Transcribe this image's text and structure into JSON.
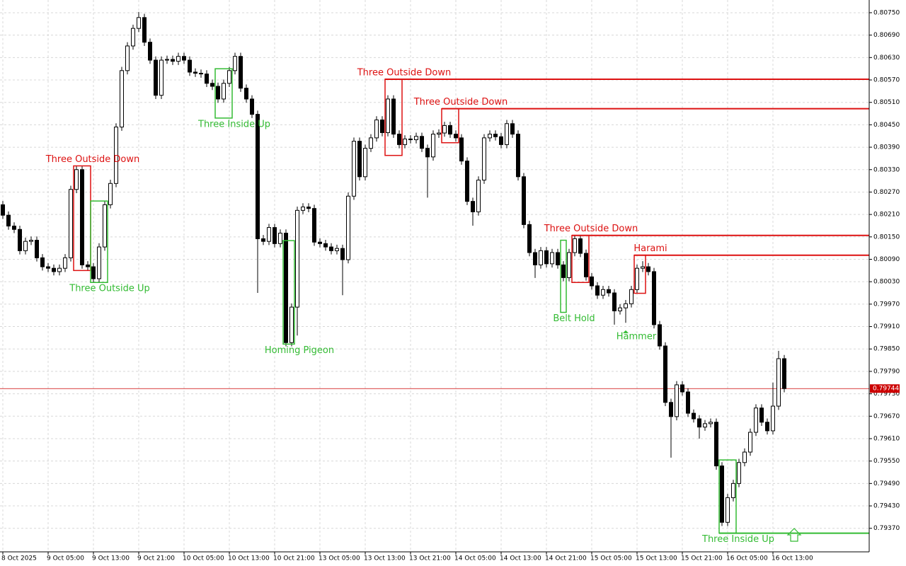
{
  "chart_data": {
    "type": "candlestick",
    "categories": [
      "8 Oct 2025",
      null,
      null,
      null,
      null,
      null,
      null,
      null,
      "9 Oct 05:00",
      null,
      null,
      null,
      null,
      null,
      null,
      null,
      "9 Oct 13:00",
      null,
      null,
      null,
      null,
      null,
      null,
      null,
      "9 Oct 21:00",
      null,
      null,
      null,
      null,
      null,
      null,
      null,
      "10 Oct 05:00",
      null,
      null,
      null,
      null,
      null,
      null,
      null,
      "10 Oct 13:00",
      null,
      null,
      null,
      null,
      null,
      null,
      null,
      "10 Oct 21:00",
      null,
      null,
      null,
      null,
      null,
      null,
      null,
      "13 Oct 05:00",
      null,
      null,
      null,
      null,
      null,
      null,
      null,
      "13 Oct 13:00",
      null,
      null,
      null,
      null,
      null,
      null,
      null,
      "13 Oct 21:00",
      null,
      null,
      null,
      null,
      null,
      null,
      null,
      "14 Oct 05:00",
      null,
      null,
      null,
      null,
      null,
      null,
      null,
      "14 Oct 13:00",
      null,
      null,
      null,
      null,
      null,
      null,
      null,
      "14 Oct 21:00",
      null,
      null,
      null,
      null,
      null,
      null,
      null,
      "15 Oct 05:00",
      null,
      null,
      null,
      null,
      null,
      null,
      null,
      "15 Oct 13:00",
      null,
      null,
      null,
      null,
      null,
      null,
      null,
      "15 Oct 21:00",
      null,
      null,
      null,
      null,
      null,
      null,
      null,
      "16 Oct 05:00",
      null,
      null,
      null,
      null,
      null,
      null,
      null,
      "16 Oct 13:00",
      null,
      null
    ],
    "open": [
      0.80236,
      0.80208,
      0.80179,
      0.8017,
      0.80113,
      0.80138,
      0.80141,
      0.80094,
      0.8007,
      0.80066,
      0.80057,
      0.80066,
      0.80094,
      0.80277,
      0.8033,
      0.80075,
      0.8007,
      0.80038,
      0.80123,
      0.80236,
      0.80293,
      0.80444,
      0.80595,
      0.80661,
      0.80708,
      0.80737,
      0.80671,
      0.80623,
      0.80529,
      0.80623,
      0.80625,
      0.8062,
      0.80633,
      0.80623,
      0.80591,
      0.80588,
      0.80586,
      0.80561,
      0.80553,
      0.80519,
      0.80561,
      0.80595,
      0.80633,
      0.80548,
      0.80519,
      0.80478,
      0.80145,
      0.80138,
      0.80175,
      0.80132,
      0.8016,
      0.79867,
      0.79962,
      0.80221,
      0.8023,
      0.80226,
      0.80136,
      0.80132,
      0.80123,
      0.80113,
      0.80119,
      0.80089,
      0.80259,
      0.80406,
      0.80311,
      0.80387,
      0.80415,
      0.80463,
      0.80429,
      0.80519,
      0.80425,
      0.80397,
      0.80412,
      0.8041,
      0.80419,
      0.80387,
      0.80364,
      0.80425,
      0.80428,
      0.80448,
      0.80425,
      0.80415,
      0.80353,
      0.80245,
      0.80217,
      0.80302,
      0.80415,
      0.80425,
      0.80418,
      0.80397,
      0.80453,
      0.80425,
      0.80311,
      0.80183,
      0.80108,
      0.80075,
      0.80113,
      0.80078,
      0.80108,
      0.80075,
      0.80041,
      0.80108,
      0.80145,
      0.80106,
      0.80043,
      0.80019,
      0.79994,
      0.80009,
      0.8,
      0.79952,
      0.7996,
      0.79971,
      0.80009,
      0.80066,
      0.8007,
      0.80057,
      0.79915,
      0.79858,
      0.79707,
      0.79669,
      0.79754,
      0.79735,
      0.79678,
      0.79663,
      0.79641,
      0.7965,
      0.79654,
      0.79537,
      0.79386,
      0.79452,
      0.7949,
      0.79546,
      0.79574,
      0.79627,
      0.79692,
      0.79654,
      0.79631,
      0.79697,
      0.79824
    ],
    "high": [
      0.80246,
      0.80218,
      0.80189,
      0.8018,
      0.80148,
      0.80151,
      0.80151,
      0.80104,
      0.8008,
      0.80076,
      0.80076,
      0.80104,
      0.80287,
      0.8034,
      0.8034,
      0.80085,
      0.8008,
      0.80133,
      0.80246,
      0.80303,
      0.80454,
      0.80605,
      0.80671,
      0.80718,
      0.80752,
      0.80747,
      0.80681,
      0.80633,
      0.80633,
      0.80635,
      0.80635,
      0.80643,
      0.80643,
      0.80633,
      0.80601,
      0.80598,
      0.80596,
      0.80571,
      0.80563,
      0.80571,
      0.80605,
      0.80643,
      0.80643,
      0.80558,
      0.80529,
      0.80488,
      0.80155,
      0.80185,
      0.80185,
      0.8017,
      0.8017,
      0.79972,
      0.80231,
      0.8024,
      0.8024,
      0.80236,
      0.80146,
      0.80142,
      0.80133,
      0.80129,
      0.80129,
      0.80269,
      0.80416,
      0.80416,
      0.80397,
      0.80425,
      0.80473,
      0.80473,
      0.80529,
      0.80529,
      0.80435,
      0.80422,
      0.80422,
      0.80429,
      0.80429,
      0.80397,
      0.80435,
      0.80438,
      0.80458,
      0.80458,
      0.80435,
      0.80425,
      0.80363,
      0.80255,
      0.80312,
      0.80425,
      0.80435,
      0.80435,
      0.80428,
      0.80463,
      0.80463,
      0.80435,
      0.80321,
      0.80193,
      0.80118,
      0.80123,
      0.80123,
      0.80118,
      0.80118,
      0.80085,
      0.80118,
      0.80155,
      0.80155,
      0.80116,
      0.80053,
      0.80029,
      0.80019,
      0.80019,
      0.8001,
      0.7997,
      0.79981,
      0.80019,
      0.80076,
      0.80085,
      0.8008,
      0.80067,
      0.79925,
      0.79868,
      0.79717,
      0.79764,
      0.79764,
      0.79745,
      0.79688,
      0.79673,
      0.7966,
      0.79664,
      0.79664,
      0.79547,
      0.79462,
      0.795,
      0.79556,
      0.79584,
      0.79637,
      0.79702,
      0.79702,
      0.79664,
      0.7976,
      0.79845,
      0.79834
    ],
    "low": [
      0.80198,
      0.80169,
      0.8016,
      0.80103,
      0.80103,
      0.80128,
      0.80084,
      0.8006,
      0.80056,
      0.80047,
      0.80047,
      0.80056,
      0.80084,
      0.80267,
      0.80065,
      0.8006,
      0.80028,
      0.80028,
      0.80113,
      0.80226,
      0.80283,
      0.80434,
      0.80585,
      0.80651,
      0.80698,
      0.80661,
      0.80613,
      0.80519,
      0.80519,
      0.80613,
      0.8061,
      0.8061,
      0.80613,
      0.80581,
      0.80578,
      0.80576,
      0.80551,
      0.80543,
      0.80509,
      0.80509,
      0.80551,
      0.80585,
      0.80538,
      0.80509,
      0.80468,
      0.8,
      0.80128,
      0.80128,
      0.80122,
      0.80122,
      0.79857,
      0.79857,
      0.79886,
      0.80211,
      0.80216,
      0.80126,
      0.80122,
      0.80113,
      0.80103,
      0.80103,
      0.79994,
      0.80079,
      0.80249,
      0.80301,
      0.80301,
      0.80377,
      0.80405,
      0.80419,
      0.80419,
      0.80415,
      0.80387,
      0.80387,
      0.804,
      0.804,
      0.80377,
      0.80255,
      0.80354,
      0.80415,
      0.80418,
      0.80415,
      0.80405,
      0.80343,
      0.80235,
      0.8018,
      0.80207,
      0.80292,
      0.80405,
      0.80408,
      0.80387,
      0.80387,
      0.80415,
      0.80301,
      0.80173,
      0.80098,
      0.8004,
      0.80065,
      0.80068,
      0.80068,
      0.80065,
      0.80031,
      0.80031,
      0.80098,
      0.80096,
      0.80033,
      0.80009,
      0.79984,
      0.79984,
      0.7999,
      0.79915,
      0.79942,
      0.7992,
      0.79961,
      0.79999,
      0.80056,
      0.80047,
      0.79905,
      0.79848,
      0.79697,
      0.79559,
      0.79659,
      0.79725,
      0.79668,
      0.79653,
      0.7961,
      0.79631,
      0.7964,
      0.79527,
      0.79376,
      0.79376,
      0.79442,
      0.7948,
      0.79536,
      0.79564,
      0.79617,
      0.79644,
      0.79621,
      0.79621,
      0.79687,
      0.79734
    ],
    "close": [
      0.80208,
      0.80179,
      0.8017,
      0.80113,
      0.80138,
      0.80141,
      0.80094,
      0.8007,
      0.80066,
      0.80057,
      0.80066,
      0.80094,
      0.80277,
      0.8033,
      0.80075,
      0.8007,
      0.80038,
      0.80123,
      0.80236,
      0.80293,
      0.80444,
      0.80595,
      0.80661,
      0.80708,
      0.80737,
      0.80671,
      0.80623,
      0.80529,
      0.80623,
      0.80625,
      0.8062,
      0.80633,
      0.80623,
      0.80591,
      0.80588,
      0.80586,
      0.80561,
      0.80553,
      0.80519,
      0.80561,
      0.80595,
      0.80633,
      0.80548,
      0.80519,
      0.80478,
      0.80145,
      0.80138,
      0.80175,
      0.80132,
      0.8016,
      0.79867,
      0.79962,
      0.80221,
      0.8023,
      0.80226,
      0.80136,
      0.80132,
      0.80123,
      0.80113,
      0.80119,
      0.80089,
      0.80259,
      0.80406,
      0.80311,
      0.80387,
      0.80415,
      0.80463,
      0.80429,
      0.80519,
      0.80425,
      0.80397,
      0.80412,
      0.8041,
      0.80419,
      0.80387,
      0.80364,
      0.80425,
      0.80428,
      0.80448,
      0.80425,
      0.80415,
      0.80353,
      0.80245,
      0.80217,
      0.80302,
      0.80415,
      0.80425,
      0.80418,
      0.80397,
      0.80453,
      0.80425,
      0.80311,
      0.80183,
      0.80108,
      0.80075,
      0.80113,
      0.80078,
      0.80108,
      0.80075,
      0.80041,
      0.80108,
      0.80145,
      0.80106,
      0.80043,
      0.80019,
      0.79994,
      0.80009,
      0.8,
      0.79952,
      0.7996,
      0.79971,
      0.80009,
      0.80066,
      0.8007,
      0.80057,
      0.79915,
      0.79858,
      0.79707,
      0.79669,
      0.79754,
      0.79735,
      0.79678,
      0.79663,
      0.79641,
      0.7965,
      0.79654,
      0.79537,
      0.79386,
      0.79452,
      0.7949,
      0.79546,
      0.79574,
      0.79627,
      0.79692,
      0.79654,
      0.79631,
      0.79697,
      0.79824,
      0.79744
    ],
    "ylim": [
      0.79307,
      0.80784
    ],
    "yticks": [
      {
        "value": 0.8075,
        "label": "0.80750"
      },
      {
        "value": 0.8069,
        "label": "0.80690"
      },
      {
        "value": 0.8063,
        "label": "0.80630"
      },
      {
        "value": 0.8057,
        "label": "0.80570"
      },
      {
        "value": 0.8051,
        "label": "0.80510"
      },
      {
        "value": 0.8045,
        "label": "0.80450"
      },
      {
        "value": 0.8039,
        "label": "0.80390"
      },
      {
        "value": 0.8033,
        "label": "0.80330"
      },
      {
        "value": 0.8027,
        "label": "0.80270"
      },
      {
        "value": 0.8021,
        "label": "0.80210"
      },
      {
        "value": 0.8015,
        "label": "0.80150"
      },
      {
        "value": 0.8009,
        "label": "0.80090"
      },
      {
        "value": 0.8003,
        "label": "0.80030"
      },
      {
        "value": 0.7997,
        "label": "0.79970"
      },
      {
        "value": 0.7991,
        "label": "0.79910"
      },
      {
        "value": 0.7985,
        "label": "0.79850"
      },
      {
        "value": 0.7979,
        "label": "0.79790"
      },
      {
        "value": 0.7973,
        "label": "0.79730"
      },
      {
        "value": 0.7967,
        "label": "0.79670"
      },
      {
        "value": 0.7961,
        "label": "0.79610"
      },
      {
        "value": 0.7955,
        "label": "0.79550"
      },
      {
        "value": 0.7949,
        "label": "0.79490"
      },
      {
        "value": 0.7943,
        "label": "0.79430"
      },
      {
        "value": 0.7937,
        "label": "0.79370"
      }
    ],
    "grid": true,
    "bull_color": "#ffffff",
    "bear_color": "#000000",
    "current_price": 0.79744,
    "current_price_color": "#cc0000",
    "patterns": [
      {
        "label": "Three Outside Down",
        "color": "#dd1111",
        "start": 13,
        "end": 15,
        "top": 0.8034,
        "bottom": 0.8006,
        "label_position": "above"
      },
      {
        "label": "Three Outside Up",
        "color": "#33bb33",
        "start": 16,
        "end": 18,
        "top": 0.80246,
        "bottom": 0.80028,
        "label_position": "below"
      },
      {
        "label": "Three Inside Up",
        "color": "#33bb33",
        "start": 38,
        "end": 40,
        "top": 0.806,
        "bottom": 0.80468,
        "label_position": "below"
      },
      {
        "label": "Homing Pigeon",
        "color": "#33bb33",
        "start": 50,
        "end": 51,
        "top": 0.8014,
        "bottom": 0.79863,
        "label_position": "below"
      },
      {
        "label": "Three Outside Down",
        "color": "#dd1111",
        "start": 68,
        "end": 70,
        "top": 0.80572,
        "bottom": 0.80368,
        "level": 0.80572,
        "label_position": "above"
      },
      {
        "label": "Three Outside Down",
        "color": "#dd1111",
        "start": 78,
        "end": 80,
        "top": 0.80493,
        "bottom": 0.80402,
        "level": 0.80493,
        "label_position": "above"
      },
      {
        "label": "Belt Hold",
        "color": "#33bb33",
        "start": 99,
        "end": 99,
        "top": 0.80141,
        "bottom": 0.79948,
        "label_position": "below"
      },
      {
        "label": "Three Outside Down",
        "color": "#dd1111",
        "start": 101,
        "end": 103,
        "top": 0.80154,
        "bottom": 0.80028,
        "level": 0.80154,
        "label_position": "above"
      },
      {
        "label": "Hammer",
        "color": "#33bb33",
        "start": 110,
        "end": 110,
        "bottom": 0.799,
        "label_position": "below"
      },
      {
        "label": "Harami",
        "color": "#dd1111",
        "start": 112,
        "end": 113,
        "top": 0.80101,
        "bottom": 0.79999,
        "level": 0.80101,
        "label_position": "above"
      },
      {
        "label": "Three Inside Up",
        "color": "#33bb33",
        "start": 127,
        "end": 129,
        "top": 0.79553,
        "bottom": 0.79357,
        "level": 0.79357,
        "label_position": "below"
      }
    ]
  }
}
